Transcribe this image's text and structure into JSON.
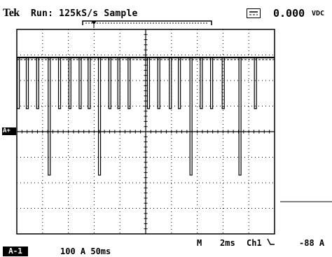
{
  "header": {
    "brand": "Tek",
    "status": "Run:  125kS/s  Sample",
    "meter_value": "0.000",
    "meter_unit": "VDC"
  },
  "footer": {
    "channel_label": "A-1",
    "channel_scale": "100 A  50ms",
    "trigger_position": "M",
    "timebase": "2ms",
    "trigger_source": "Ch1",
    "trigger_level": "-88 A"
  },
  "channel_marker": "A+",
  "icons": {
    "dc_coupling": "dc-coupling-icon",
    "trigger_slope": "falling-slope-icon"
  },
  "chart_data": {
    "type": "line",
    "title": "",
    "xlabel": "",
    "ylabel": "",
    "grid": true,
    "x_divisions": 10,
    "y_divisions": 8,
    "x_range_ms": [
      0,
      20
    ],
    "y_range_div": [
      -4,
      4
    ],
    "series": [
      {
        "baseline_div": 2.9,
        "pulses": [
          {
            "t_ms": 0.1,
            "depth_div": 2.0
          },
          {
            "t_ms": 0.8,
            "depth_div": 2.0
          },
          {
            "t_ms": 1.6,
            "depth_div": 2.0
          },
          {
            "t_ms": 2.5,
            "depth_div": 4.6
          },
          {
            "t_ms": 3.3,
            "depth_div": 2.0
          },
          {
            "t_ms": 4.1,
            "depth_div": 2.0
          },
          {
            "t_ms": 4.9,
            "depth_div": 2.0
          },
          {
            "t_ms": 5.6,
            "depth_div": 2.0
          },
          {
            "t_ms": 6.4,
            "depth_div": 4.6
          },
          {
            "t_ms": 7.2,
            "depth_div": 2.0
          },
          {
            "t_ms": 7.9,
            "depth_div": 2.0
          },
          {
            "t_ms": 8.7,
            "depth_div": 2.0
          },
          {
            "t_ms": 10.2,
            "depth_div": 2.0
          },
          {
            "t_ms": 11.0,
            "depth_div": 2.0
          },
          {
            "t_ms": 11.9,
            "depth_div": 2.0
          },
          {
            "t_ms": 12.6,
            "depth_div": 2.0
          },
          {
            "t_ms": 13.5,
            "depth_div": 4.6
          },
          {
            "t_ms": 14.3,
            "depth_div": 2.0
          },
          {
            "t_ms": 15.1,
            "depth_div": 2.0
          },
          {
            "t_ms": 16.0,
            "depth_div": 2.0
          },
          {
            "t_ms": 17.3,
            "depth_div": 4.6
          },
          {
            "t_ms": 18.5,
            "depth_div": 2.0
          }
        ]
      }
    ]
  }
}
